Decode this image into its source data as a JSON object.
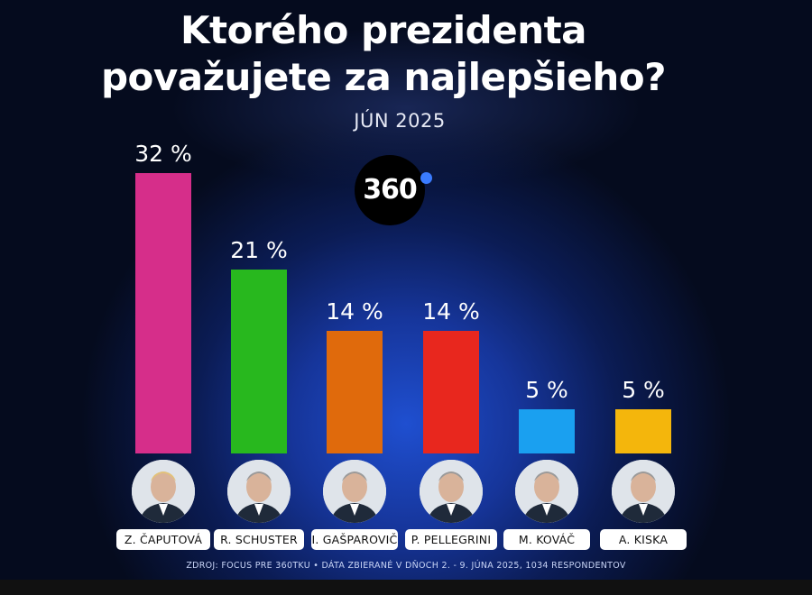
{
  "header": {
    "title_line1": "Ktorého prezidenta",
    "title_line2": "považujete za najlepšieho?",
    "date": "JÚN 2025",
    "logo_text": "360"
  },
  "chart_data": {
    "type": "bar",
    "title": "Ktorého prezidenta považujete za najlepšieho?",
    "subtitle": "JÚN 2025",
    "unit": "%",
    "ylim": [
      0,
      32
    ],
    "categories": [
      "Z. ČAPUTOVÁ",
      "R. SCHUSTER",
      "I. GAŠPAROVIČ",
      "P. PELLEGRINI",
      "M. KOVÁČ",
      "A. KISKA"
    ],
    "values": [
      32,
      21,
      14,
      14,
      5,
      5
    ],
    "value_labels": [
      "32 %",
      "21 %",
      "14 %",
      "14 %",
      "5 %",
      "5 %"
    ],
    "colors": [
      "#d62e8a",
      "#28b81e",
      "#e06a0c",
      "#e8271e",
      "#1aa0f0",
      "#f4b60c"
    ]
  },
  "footer": {
    "source": "ZDROJ: FOCUS PRE 360TKU • DÁTA ZBIERANÉ V DŇOCH 2. - 9. JÚNA 2025, 1034 RESPONDENTOV"
  }
}
